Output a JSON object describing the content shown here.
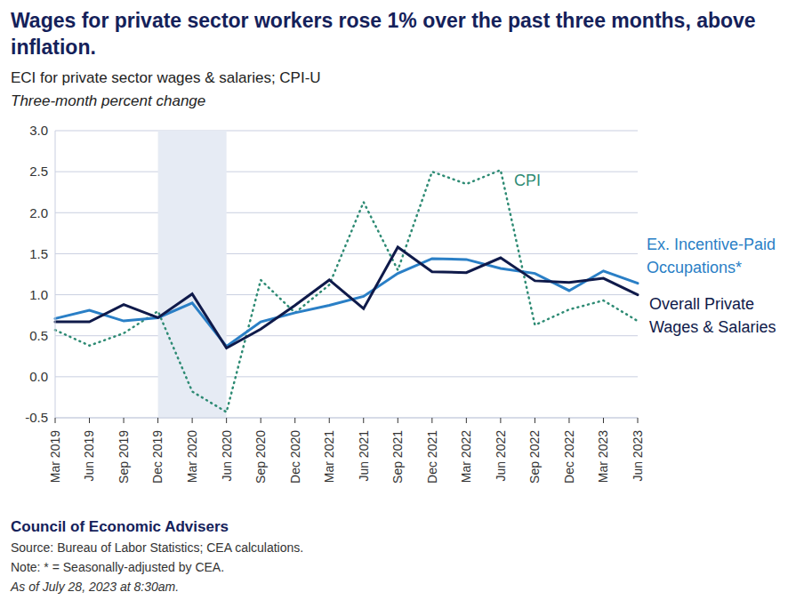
{
  "chart_data": {
    "type": "line",
    "title": "Wages for private sector workers rose 1% over the past three months, above inflation.",
    "subtitle": "ECI for private sector wages & salaries; CPI-U",
    "y_label": "Three-month percent change",
    "categories": [
      "Mar 2019",
      "Jun 2019",
      "Sep 2019",
      "Dec 2019",
      "Mar 2020",
      "Jun 2020",
      "Sep 2020",
      "Dec 2020",
      "Mar 2021",
      "Jun 2021",
      "Sep 2021",
      "Dec 2021",
      "Mar 2022",
      "Jun 2022",
      "Sep 2022",
      "Dec 2022",
      "Mar 2023",
      "Jun 2023"
    ],
    "series": [
      {
        "name": "CPI",
        "color": "#2e8b74",
        "line_style": "dotted",
        "values": [
          0.57,
          0.38,
          0.53,
          0.8,
          -0.18,
          -0.43,
          1.18,
          0.78,
          1.12,
          2.13,
          1.3,
          2.5,
          2.35,
          2.52,
          0.63,
          0.82,
          0.93,
          0.68
        ]
      },
      {
        "name": "Ex. Incentive-Paid Occupations*",
        "color": "#2a7fc6",
        "line_style": "solid",
        "values": [
          0.71,
          0.81,
          0.68,
          0.72,
          0.9,
          0.37,
          0.67,
          0.78,
          0.87,
          0.98,
          1.26,
          1.44,
          1.43,
          1.32,
          1.26,
          1.05,
          1.29,
          1.14
        ]
      },
      {
        "name": "Overall Private Wages & Salaries",
        "color": "#0f1a4a",
        "line_style": "solid",
        "values": [
          0.67,
          0.67,
          0.88,
          0.72,
          1.01,
          0.35,
          0.58,
          0.87,
          1.18,
          0.83,
          1.58,
          1.28,
          1.27,
          1.45,
          1.17,
          1.15,
          1.2,
          1.0
        ]
      }
    ],
    "ylim": [
      -0.5,
      3.0
    ],
    "yticks": [
      -0.5,
      {
        "value": 0,
        "label": "0.0"
      },
      0.5,
      {
        "value": 1,
        "label": "1.0"
      },
      1.5,
      {
        "value": 2,
        "label": "2.0"
      },
      2.5,
      {
        "value": 3,
        "label": "3.0"
      }
    ],
    "grid": true,
    "shaded_range": [
      "Dec 2019",
      "Jun 2020"
    ],
    "footer": {
      "org": "Council of Economic Advisers",
      "source": "Source: Bureau of Labor Statistics; CEA calculations.",
      "note": "Note: * = Seasonally-adjusted by CEA.",
      "timestamp": "As of July 28, 2023 at 8:30am."
    }
  }
}
